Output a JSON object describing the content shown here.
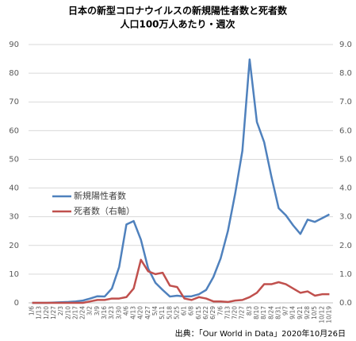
{
  "chart_data": {
    "type": "line",
    "title": [
      "日本の新型コロナウイルスの新規陽性者数と死者数",
      "人口100万人あたり・週次"
    ],
    "categories": [
      "1/6",
      "1/13",
      "1/20",
      "1/27",
      "2/3",
      "2/10",
      "2/17",
      "2/24",
      "3/2",
      "3/9",
      "3/16",
      "3/23",
      "3/30",
      "4/6",
      "4/13",
      "4/20",
      "4/27",
      "5/4",
      "5/11",
      "5/18",
      "5/25",
      "6/1",
      "6/8",
      "6/15",
      "6/22",
      "6/29",
      "7/6",
      "7/13",
      "7/20",
      "7/27",
      "8/3",
      "8/10",
      "8/17",
      "8/24",
      "8/31",
      "9/7",
      "9/14",
      "9/21",
      "9/28",
      "10/5",
      "10/12",
      "10/19"
    ],
    "series": [
      {
        "name": "新規陽性者数",
        "color": "#4f81bd",
        "axis": "y",
        "values": [
          0,
          0,
          0,
          0.1,
          0.2,
          0.3,
          0.5,
          0.8,
          1.5,
          2.3,
          2.2,
          5,
          12.5,
          27.3,
          28.5,
          22,
          12,
          7,
          4.5,
          2.2,
          2.5,
          2.2,
          2.3,
          3,
          4.5,
          9,
          15.5,
          25,
          38,
          53,
          84.8,
          63,
          56,
          44,
          33,
          30.5,
          27,
          24,
          29,
          28.2,
          29.5,
          30.8
        ]
      },
      {
        "name": "死者数（右軸）",
        "color": "#c0504d",
        "axis": "y2",
        "values": [
          0,
          0,
          0,
          0,
          0,
          0,
          0,
          0,
          0.05,
          0.1,
          0.1,
          0.15,
          0.15,
          0.2,
          0.5,
          1.5,
          1.1,
          1.0,
          1.05,
          0.6,
          0.55,
          0.15,
          0.1,
          0.2,
          0.15,
          0.05,
          0.05,
          0.03,
          0.08,
          0.1,
          0.2,
          0.35,
          0.65,
          0.65,
          0.72,
          0.65,
          0.5,
          0.35,
          0.4,
          0.25,
          0.3,
          0.3
        ]
      }
    ],
    "ylim": [
      0,
      90
    ],
    "yticks": [
      0,
      10,
      20,
      30,
      40,
      50,
      60,
      70,
      80,
      90
    ],
    "y2lim": [
      0,
      9
    ],
    "y2ticks": [
      {
        "value": 0,
        "label": "0.0"
      },
      {
        "value": 1,
        "label": "1.0"
      },
      {
        "value": 2,
        "label": "2.0"
      },
      {
        "value": 3,
        "label": "3.0"
      },
      {
        "value": 4,
        "label": "4.0"
      },
      {
        "value": 5,
        "label": "5.0"
      },
      {
        "value": 6,
        "label": "6.0"
      },
      {
        "value": 7,
        "label": "7.0"
      },
      {
        "value": 8,
        "label": "8.0"
      },
      {
        "value": 9,
        "label": "9.0"
      }
    ],
    "grid": true,
    "source": "出典：「Our World in Data」2020年10月26日"
  }
}
